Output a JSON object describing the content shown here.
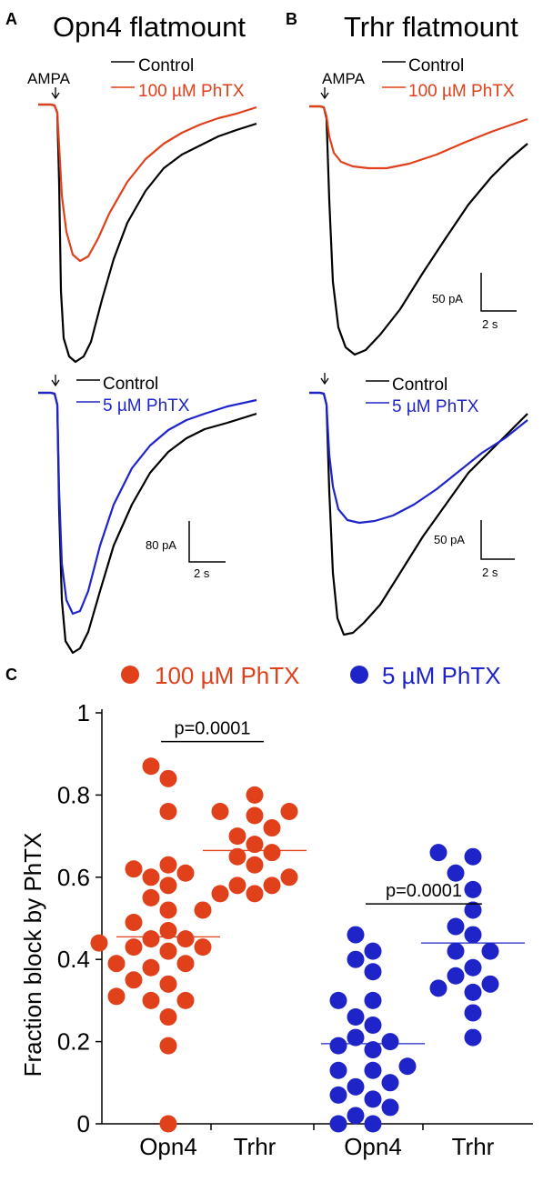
{
  "panels": {
    "A": {
      "letter": "A",
      "title": "Opn4 flatmount",
      "stim_label": "AMPA",
      "top": {
        "legend": [
          {
            "label": "Control",
            "color": "#000000"
          },
          {
            "label": "100 µM PhTX",
            "color": "#e0401a"
          }
        ]
      },
      "bottom": {
        "legend": [
          {
            "label": "Control",
            "color": "#000000"
          },
          {
            "label": "5 µM PhTX",
            "color": "#1f24c8"
          }
        ],
        "scale_y": "80 pA",
        "scale_x": "2 s"
      }
    },
    "B": {
      "letter": "B",
      "title": "Trhr flatmount",
      "stim_label": "AMPA",
      "top": {
        "legend": [
          {
            "label": "Control",
            "color": "#000000"
          },
          {
            "label": "100 µM PhTX",
            "color": "#e0401a"
          }
        ],
        "scale_y": "50 pA",
        "scale_x": "2 s"
      },
      "bottom": {
        "legend": [
          {
            "label": "Control",
            "color": "#000000"
          },
          {
            "label": "5 µM PhTX",
            "color": "#1f24c8"
          }
        ],
        "scale_y": "50 pA",
        "scale_x": "2 s"
      }
    },
    "C": {
      "letter": "C",
      "legend": [
        {
          "label": "100 µM PhTX",
          "color": "#e0401a"
        },
        {
          "label": "5 µM PhTX",
          "color": "#1f24c8"
        }
      ]
    }
  },
  "chart_data": [
    {
      "type": "scatter",
      "panel": "C",
      "ylabel": "Fraction block by PhTX",
      "ylim": [
        0,
        1
      ],
      "yticks": [
        "0",
        "0.2",
        "0.4",
        "0.6",
        "0.8",
        "1"
      ],
      "yticks_values": [
        0,
        0.2,
        0.4,
        0.6,
        0.8,
        1
      ],
      "categories": [
        "Opn4",
        "Trhr",
        "Opn4",
        "Trhr"
      ],
      "series": [
        {
          "name": "100 µM PhTX",
          "color": "#e0401a",
          "category": 0,
          "mean": 0.455,
          "values": [
            0.87,
            0.84,
            0.76,
            0.63,
            0.62,
            0.61,
            0.6,
            0.58,
            0.55,
            0.52,
            0.52,
            0.49,
            0.47,
            0.45,
            0.45,
            0.44,
            0.43,
            0.43,
            0.42,
            0.39,
            0.39,
            0.38,
            0.35,
            0.34,
            0.31,
            0.3,
            0.3,
            0.26,
            0.19,
            0.0
          ]
        },
        {
          "name": "100 µM PhTX",
          "color": "#e0401a",
          "category": 1,
          "mean": 0.665,
          "values": [
            0.8,
            0.76,
            0.76,
            0.75,
            0.72,
            0.7,
            0.68,
            0.66,
            0.65,
            0.63,
            0.6,
            0.58,
            0.58,
            0.56,
            0.56
          ]
        },
        {
          "name": "5 µM PhTX",
          "color": "#1f24c8",
          "category": 2,
          "mean": 0.195,
          "values": [
            0.46,
            0.42,
            0.4,
            0.37,
            0.3,
            0.3,
            0.26,
            0.24,
            0.21,
            0.2,
            0.19,
            0.18,
            0.14,
            0.13,
            0.13,
            0.1,
            0.09,
            0.07,
            0.06,
            0.04,
            0.02,
            0.0,
            0.0
          ]
        },
        {
          "name": "5 µM PhTX",
          "color": "#1f24c8",
          "category": 3,
          "mean": 0.44,
          "values": [
            0.66,
            0.65,
            0.61,
            0.57,
            0.52,
            0.48,
            0.46,
            0.42,
            0.42,
            0.38,
            0.36,
            0.34,
            0.33,
            0.32,
            0.27,
            0.21
          ]
        }
      ],
      "annotations": [
        {
          "text": "p=0.0001",
          "from_category": 0,
          "to_category": 1,
          "y": 0.93
        },
        {
          "text": "p=0.0001",
          "from_category": 2,
          "to_category": 3,
          "y": 0.535
        }
      ]
    }
  ]
}
